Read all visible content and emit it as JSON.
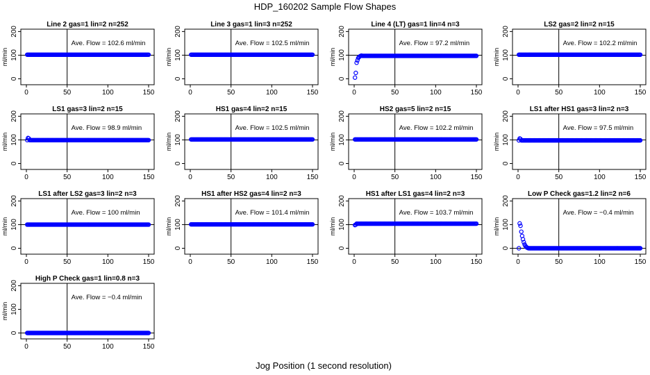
{
  "title": "HDP_160202  Sample Flow Shapes",
  "xlabel": "Jog Position (1 second resolution)",
  "colors": {
    "points": "#0000ff",
    "axes": "#000000"
  },
  "chart_data": [
    {
      "type": "scatter",
      "title": "Line 2 gas=1 lin=2 n=252",
      "annotation": "Ave. Flow = 102.6  ml/min",
      "ylabel": "ml/min",
      "xlim": [
        0,
        150
      ],
      "ylim": [
        -25,
        210
      ],
      "xticks": [
        0,
        50,
        100,
        150
      ],
      "yticks": [
        0,
        100,
        200
      ],
      "vline": 50,
      "hline": 100,
      "series": [
        {
          "shape": "flat",
          "level": 102
        }
      ]
    },
    {
      "type": "scatter",
      "title": "Line 3 gas=1 lin=3 n=252",
      "annotation": "Ave. Flow = 102.5  ml/min",
      "ylabel": "ml/min",
      "xlim": [
        0,
        150
      ],
      "ylim": [
        -25,
        210
      ],
      "xticks": [
        0,
        50,
        100,
        150
      ],
      "yticks": [
        0,
        100,
        200
      ],
      "vline": 50,
      "hline": 100,
      "series": [
        {
          "shape": "flat",
          "level": 102
        }
      ]
    },
    {
      "type": "scatter",
      "title": "Line 4 (LT) gas=1 lin=4 n=3",
      "annotation": "Ave. Flow = 97.2  ml/min",
      "ylabel": "ml/min",
      "xlim": [
        0,
        150
      ],
      "ylim": [
        -25,
        210
      ],
      "xticks": [
        0,
        50,
        100,
        150
      ],
      "yticks": [
        0,
        100,
        200
      ],
      "vline": 50,
      "hline": 100,
      "series": [
        {
          "shape": "rise",
          "level": 97,
          "early": [
            [
              1,
              5
            ],
            [
              2,
              25
            ],
            [
              3,
              68
            ],
            [
              4,
              78
            ],
            [
              5,
              88
            ],
            [
              6,
              92
            ],
            [
              7,
              95
            ],
            [
              8,
              97
            ],
            [
              9,
              98
            ]
          ]
        }
      ]
    },
    {
      "type": "scatter",
      "title": "LS2 gas=2 lin=2 n=15",
      "annotation": "Ave. Flow = 102.2  ml/min",
      "ylabel": "ml/min",
      "xlim": [
        0,
        150
      ],
      "ylim": [
        -25,
        210
      ],
      "xticks": [
        0,
        50,
        100,
        150
      ],
      "yticks": [
        0,
        100,
        200
      ],
      "vline": 50,
      "hline": 100,
      "series": [
        {
          "shape": "flat",
          "level": 102
        }
      ]
    },
    {
      "type": "scatter",
      "title": "LS1 gas=3 lin=2 n=15",
      "annotation": "Ave. Flow = 98.9  ml/min",
      "ylabel": "ml/min",
      "xlim": [
        0,
        150
      ],
      "ylim": [
        -25,
        210
      ],
      "xticks": [
        0,
        50,
        100,
        150
      ],
      "yticks": [
        0,
        100,
        200
      ],
      "vline": 50,
      "hline": 100,
      "series": [
        {
          "shape": "flat",
          "level": 99,
          "early": [
            [
              2,
              108
            ],
            [
              3,
              106
            ]
          ]
        }
      ]
    },
    {
      "type": "scatter",
      "title": "HS1 gas=4 lin=2 n=15",
      "annotation": "Ave. Flow = 102.5  ml/min",
      "ylabel": "ml/min",
      "xlim": [
        0,
        150
      ],
      "ylim": [
        -25,
        210
      ],
      "xticks": [
        0,
        50,
        100,
        150
      ],
      "yticks": [
        0,
        100,
        200
      ],
      "vline": 50,
      "hline": 100,
      "series": [
        {
          "shape": "flat",
          "level": 102
        }
      ]
    },
    {
      "type": "scatter",
      "title": "HS2 gas=5 lin=2 n=15",
      "annotation": "Ave. Flow = 102.2  ml/min",
      "ylabel": "ml/min",
      "xlim": [
        0,
        150
      ],
      "ylim": [
        -25,
        210
      ],
      "xticks": [
        0,
        50,
        100,
        150
      ],
      "yticks": [
        0,
        100,
        200
      ],
      "vline": 50,
      "hline": 100,
      "series": [
        {
          "shape": "flat",
          "level": 102
        }
      ]
    },
    {
      "type": "scatter",
      "title": "LS1 after HS1 gas=3 lin=2 n=3",
      "annotation": "Ave. Flow = 97.5  ml/min",
      "ylabel": "ml/min",
      "xlim": [
        0,
        150
      ],
      "ylim": [
        -25,
        210
      ],
      "xticks": [
        0,
        50,
        100,
        150
      ],
      "yticks": [
        0,
        100,
        200
      ],
      "vline": 50,
      "hline": 100,
      "series": [
        {
          "shape": "flat",
          "level": 98,
          "early": [
            [
              2,
              106
            ],
            [
              3,
              104
            ]
          ]
        }
      ]
    },
    {
      "type": "scatter",
      "title": "LS1 after LS2 gas=3 lin=2 n=3",
      "annotation": "Ave. Flow = 100  ml/min",
      "ylabel": "ml/min",
      "xlim": [
        0,
        150
      ],
      "ylim": [
        -25,
        210
      ],
      "xticks": [
        0,
        50,
        100,
        150
      ],
      "yticks": [
        0,
        100,
        200
      ],
      "vline": 50,
      "hline": 100,
      "series": [
        {
          "shape": "flat",
          "level": 100
        }
      ]
    },
    {
      "type": "scatter",
      "title": "HS1 after HS2 gas=4 lin=2 n=3",
      "annotation": "Ave. Flow = 101.4  ml/min",
      "ylabel": "ml/min",
      "xlim": [
        0,
        150
      ],
      "ylim": [
        -25,
        210
      ],
      "xticks": [
        0,
        50,
        100,
        150
      ],
      "yticks": [
        0,
        100,
        200
      ],
      "vline": 50,
      "hline": 100,
      "series": [
        {
          "shape": "flat",
          "level": 101
        }
      ]
    },
    {
      "type": "scatter",
      "title": "HS1 after LS1 gas=4 lin=2 n=3",
      "annotation": "Ave. Flow = 103.7  ml/min",
      "ylabel": "ml/min",
      "xlim": [
        0,
        150
      ],
      "ylim": [
        -25,
        210
      ],
      "xticks": [
        0,
        50,
        100,
        150
      ],
      "yticks": [
        0,
        100,
        200
      ],
      "vline": 50,
      "hline": 100,
      "series": [
        {
          "shape": "flat",
          "level": 104,
          "early": [
            [
              1,
              98
            ],
            [
              2,
              100
            ]
          ]
        }
      ]
    },
    {
      "type": "scatter",
      "title": "Low P Check gas=1.2 lin=2 n=6",
      "annotation": "Ave. Flow = −0.4  ml/min",
      "ylabel": "ml/min",
      "xlim": [
        0,
        150
      ],
      "ylim": [
        -25,
        210
      ],
      "xticks": [
        0,
        50,
        100,
        150
      ],
      "yticks": [
        0,
        100,
        200
      ],
      "vline": 50,
      "hline": 0,
      "series": [
        {
          "shape": "decay",
          "level": 0,
          "early": [
            [
              2,
              105
            ],
            [
              3,
              95
            ],
            [
              4,
              70
            ],
            [
              5,
              52
            ],
            [
              6,
              38
            ],
            [
              7,
              26
            ],
            [
              8,
              16
            ],
            [
              9,
              10
            ],
            [
              10,
              6
            ],
            [
              11,
              3
            ],
            [
              12,
              1
            ]
          ]
        }
      ]
    },
    {
      "type": "scatter",
      "title": "High P Check gas=1 lin=0.8 n=3",
      "annotation": "Ave. Flow = −0.4  ml/min",
      "ylabel": "ml/min",
      "xlim": [
        0,
        150
      ],
      "ylim": [
        -25,
        210
      ],
      "xticks": [
        0,
        50,
        100,
        150
      ],
      "yticks": [
        0,
        100,
        200
      ],
      "vline": 50,
      "hline": 0,
      "series": [
        {
          "shape": "flat",
          "level": 0
        }
      ]
    }
  ]
}
